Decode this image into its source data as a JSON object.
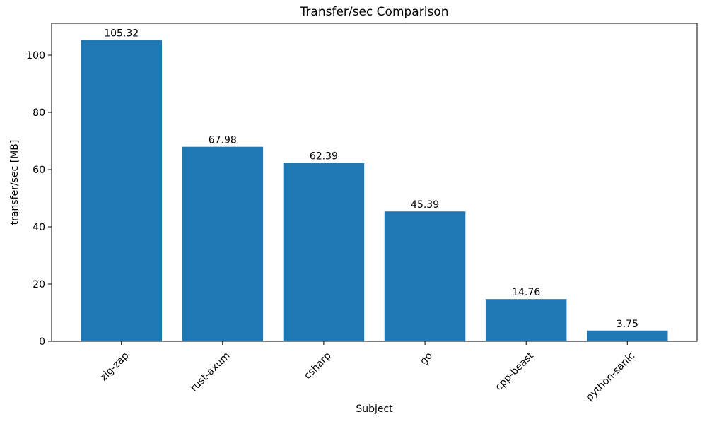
{
  "chart_data": {
    "type": "bar",
    "title": "Transfer/sec Comparison",
    "xlabel": "Subject",
    "ylabel": "transfer/sec [MB]",
    "categories": [
      "zig-zap",
      "rust-axum",
      "csharp",
      "go",
      "cpp-beast",
      "python-sanic"
    ],
    "values": [
      105.32,
      67.98,
      62.39,
      45.39,
      14.76,
      3.75
    ],
    "value_labels": [
      "105.32",
      "67.98",
      "62.39",
      "45.39",
      "14.76",
      "3.75"
    ],
    "ylim": [
      0,
      111.1
    ],
    "yticks": [
      0,
      20,
      40,
      60,
      80,
      100
    ],
    "bar_color": "#1f77b4",
    "axis_color": "#000000",
    "text_color": "#000000",
    "x_tick_rotation": 45,
    "grid": false,
    "legend_position": "none"
  }
}
